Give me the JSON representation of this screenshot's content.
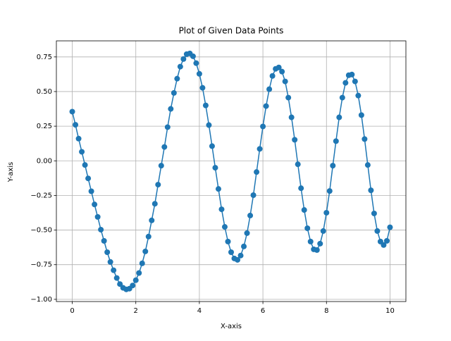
{
  "chart_data": {
    "type": "line",
    "title": "Plot of Given Data Points",
    "x_label": "X-axis",
    "y_label": "Y-axis",
    "x": [
      0,
      0.1,
      0.2,
      0.3,
      0.4,
      0.5,
      0.6,
      0.7,
      0.8,
      0.9,
      1,
      1.1,
      1.2,
      1.3,
      1.4,
      1.5,
      1.6,
      1.7,
      1.8,
      1.9,
      2,
      2.1,
      2.2,
      2.3,
      2.4,
      2.5,
      2.6,
      2.7,
      2.8,
      2.9,
      3,
      3.1,
      3.2,
      3.3,
      3.4,
      3.5,
      3.6,
      3.7,
      3.8,
      3.9,
      4,
      4.1,
      4.2,
      4.3,
      4.4,
      4.5,
      4.6,
      4.7,
      4.8,
      4.9,
      5,
      5.1,
      5.2,
      5.3,
      5.4,
      5.5,
      5.6,
      5.7,
      5.8,
      5.9,
      6,
      6.1,
      6.2,
      6.3,
      6.4,
      6.5,
      6.6,
      6.7,
      6.8,
      6.9,
      7,
      7.1,
      7.2,
      7.3,
      7.4,
      7.5,
      7.6,
      7.7,
      7.8,
      7.9,
      8,
      8.1,
      8.2,
      8.3,
      8.4,
      8.5,
      8.6,
      8.7,
      8.8,
      8.9,
      9,
      9.1,
      9.2,
      9.3,
      9.4,
      9.5,
      9.6,
      9.7,
      9.8,
      9.9,
      10
    ],
    "values": [
      0.355,
      0.26,
      0.16,
      0.065,
      -0.03,
      -0.127,
      -0.22,
      -0.315,
      -0.405,
      -0.497,
      -0.578,
      -0.66,
      -0.73,
      -0.79,
      -0.846,
      -0.89,
      -0.917,
      -0.928,
      -0.923,
      -0.9,
      -0.862,
      -0.81,
      -0.74,
      -0.654,
      -0.547,
      -0.43,
      -0.31,
      -0.172,
      -0.035,
      0.1,
      0.243,
      0.375,
      0.49,
      0.593,
      0.68,
      0.735,
      0.77,
      0.775,
      0.755,
      0.705,
      0.628,
      0.527,
      0.4,
      0.258,
      0.106,
      -0.05,
      -0.203,
      -0.35,
      -0.477,
      -0.583,
      -0.66,
      -0.705,
      -0.715,
      -0.684,
      -0.618,
      -0.522,
      -0.395,
      -0.248,
      -0.081,
      0.086,
      0.248,
      0.395,
      0.517,
      0.613,
      0.664,
      0.674,
      0.644,
      0.573,
      0.456,
      0.314,
      0.152,
      -0.025,
      -0.198,
      -0.355,
      -0.487,
      -0.583,
      -0.639,
      -0.644,
      -0.598,
      -0.507,
      -0.375,
      -0.218,
      -0.035,
      0.142,
      0.314,
      0.456,
      0.563,
      0.618,
      0.623,
      0.573,
      0.471,
      0.33,
      0.157,
      -0.03,
      -0.213,
      -0.38,
      -0.507,
      -0.583,
      -0.608,
      -0.578,
      -0.48
    ],
    "color": "#1f77b4",
    "markers": true,
    "grid": true,
    "xlim": [
      -0.5,
      10.5
    ],
    "xticks": [
      0,
      2,
      4,
      6,
      8,
      10
    ],
    "ylim": [
      -1.016,
      0.866
    ],
    "yticks": [
      {
        "value": -1,
        "label": "−1.00"
      },
      {
        "value": -0.75,
        "label": "−0.75"
      },
      {
        "value": -0.5,
        "label": "−0.50"
      },
      {
        "value": -0.25,
        "label": "−0.25"
      },
      {
        "value": 0,
        "label": "0.00"
      },
      0.25,
      {
        "value": 0.5,
        "label": "0.50"
      },
      0.75
    ]
  }
}
